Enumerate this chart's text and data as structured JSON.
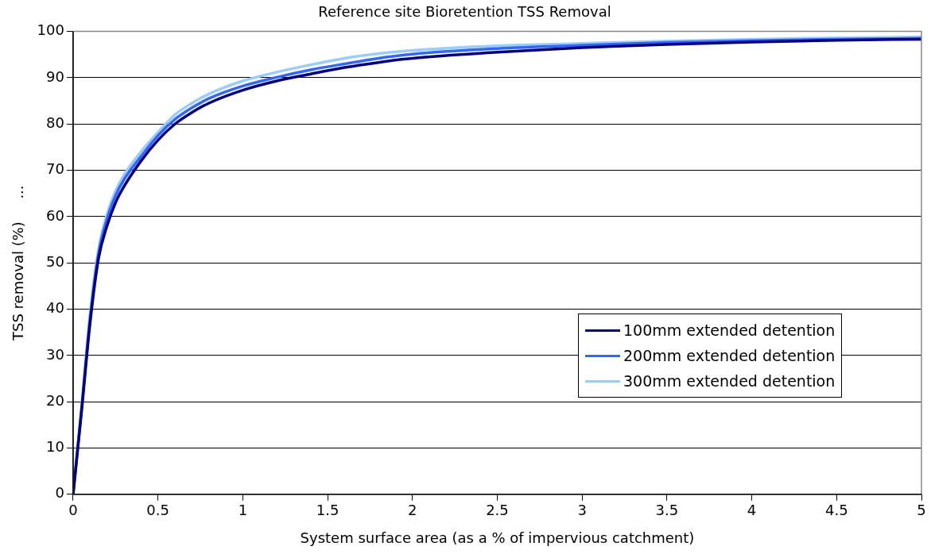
{
  "chart_data": {
    "type": "line",
    "title": "Reference site Bioretention TSS Removal",
    "xlabel": "System surface area (as a % of impervious catchment)",
    "ylabel": "TSS removal (%)     ...",
    "x": [
      0,
      0.05,
      0.1,
      0.15,
      0.2,
      0.25,
      0.3,
      0.4,
      0.5,
      0.6,
      0.7,
      0.8,
      1,
      1.2,
      1.4,
      1.6,
      1.8,
      2,
      2.5,
      3,
      3.5,
      4,
      4.5,
      5
    ],
    "series": [
      {
        "name": "100mm extended detention",
        "color": "#000080",
        "values": [
          0,
          18,
          37,
          51,
          58,
          63,
          66.5,
          72,
          76.5,
          80,
          82.5,
          84.5,
          87.3,
          89.3,
          90.8,
          92.2,
          93.3,
          94.2,
          95.5,
          96.5,
          97.2,
          97.7,
          98.1,
          98.3
        ]
      },
      {
        "name": "200mm extended detention",
        "color": "#3366ff",
        "values": [
          0,
          18.5,
          38,
          52,
          59.5,
          64.5,
          68,
          73,
          77.5,
          81,
          83.5,
          85.5,
          88.2,
          90.1,
          91.7,
          93,
          94.2,
          95.1,
          96.3,
          97,
          97.6,
          98,
          98.3,
          98.5
        ]
      },
      {
        "name": "300mm extended detention",
        "color": "#99ccff",
        "values": [
          0,
          19,
          39,
          53,
          60.5,
          65.5,
          69,
          74,
          78.2,
          82,
          84.5,
          86.5,
          89.3,
          91.2,
          92.8,
          94.2,
          95.2,
          95.9,
          96.9,
          97.4,
          97.9,
          98.3,
          98.6,
          98.8
        ]
      }
    ],
    "xlim": [
      0,
      5
    ],
    "xticks": [
      0,
      0.5,
      1,
      1.5,
      2,
      2.5,
      3,
      3.5,
      4,
      4.5,
      5
    ],
    "ylim": [
      0,
      100
    ],
    "yticks": [
      0,
      10,
      20,
      30,
      40,
      50,
      60,
      70,
      80,
      90,
      100
    ],
    "grid": "y",
    "legend": "right",
    "marker": "none",
    "line_style": "solid"
  }
}
